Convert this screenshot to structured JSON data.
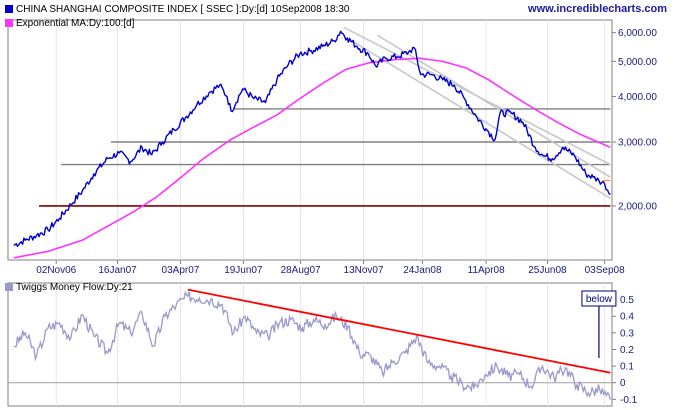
{
  "website": "www.incrediblecharts.com",
  "chart_data": [
    {
      "type": "line",
      "title": "CHINA SHANGHAI COMPOSITE INDEX [ SSEC ]:Dy:[d]  10Sep2008 18:30",
      "scale": "log",
      "ylim": [
        1420,
        6500
      ],
      "y_ticks": [
        {
          "value": 2000,
          "label": "2,000.00"
        },
        {
          "value": 3000,
          "label": "3,000.00"
        },
        {
          "value": 4000,
          "label": "4,000.00"
        },
        {
          "value": 5000,
          "label": "5,000.00"
        },
        {
          "value": 6000,
          "label": "6,000.00"
        }
      ],
      "x_ticks": [
        "02Nov06",
        "16Jan07",
        "03Apr07",
        "19Jun07",
        "28Aug07",
        "13Nov07",
        "24Jan08",
        "11Apr08",
        "25Jun08",
        "03Sep08"
      ],
      "series": [
        {
          "name": "CHINA SHANGHAI COMPOSITE INDEX [ SSEC ]:Dy:[d]  10Sep2008 18:30",
          "color": "#0000cc",
          "points": [
            [
              "2006-09-11",
              1560
            ],
            [
              "2006-09-25",
              1610
            ],
            [
              "2006-10-09",
              1660
            ],
            [
              "2006-10-23",
              1720
            ],
            [
              "2006-11-06",
              1850
            ],
            [
              "2006-11-20",
              2020
            ],
            [
              "2006-12-04",
              2200
            ],
            [
              "2006-12-18",
              2450
            ],
            [
              "2007-01-04",
              2700
            ],
            [
              "2007-01-18",
              2800
            ],
            [
              "2007-02-01",
              2650
            ],
            [
              "2007-02-15",
              2900
            ],
            [
              "2007-02-27",
              2770
            ],
            [
              "2007-03-12",
              3000
            ],
            [
              "2007-03-26",
              3250
            ],
            [
              "2007-04-09",
              3500
            ],
            [
              "2007-04-23",
              3800
            ],
            [
              "2007-05-08",
              4100
            ],
            [
              "2007-05-21",
              4300
            ],
            [
              "2007-05-30",
              4000
            ],
            [
              "2007-06-04",
              3650
            ],
            [
              "2007-06-18",
              4200
            ],
            [
              "2007-07-02",
              3950
            ],
            [
              "2007-07-16",
              3850
            ],
            [
              "2007-07-30",
              4450
            ],
            [
              "2007-08-13",
              4900
            ],
            [
              "2007-08-27",
              5250
            ],
            [
              "2007-09-10",
              5350
            ],
            [
              "2007-09-24",
              5500
            ],
            [
              "2007-10-08",
              5700
            ],
            [
              "2007-10-16",
              6050
            ],
            [
              "2007-10-24",
              5800
            ],
            [
              "2007-11-05",
              5500
            ],
            [
              "2007-11-19",
              5250
            ],
            [
              "2007-11-28",
              4850
            ],
            [
              "2007-12-10",
              5100
            ],
            [
              "2007-12-24",
              5150
            ],
            [
              "2008-01-07",
              5300
            ],
            [
              "2008-01-14",
              5450
            ],
            [
              "2008-01-22",
              4600
            ],
            [
              "2008-02-04",
              4600
            ],
            [
              "2008-02-18",
              4450
            ],
            [
              "2008-03-03",
              4300
            ],
            [
              "2008-03-17",
              3900
            ],
            [
              "2008-03-31",
              3500
            ],
            [
              "2008-04-14",
              3200
            ],
            [
              "2008-04-22",
              3050
            ],
            [
              "2008-04-28",
              3600
            ],
            [
              "2008-05-12",
              3600
            ],
            [
              "2008-05-26",
              3400
            ],
            [
              "2008-06-10",
              2900
            ],
            [
              "2008-06-20",
              2750
            ],
            [
              "2008-07-01",
              2700
            ],
            [
              "2008-07-14",
              2900
            ],
            [
              "2008-07-28",
              2750
            ],
            [
              "2008-08-11",
              2450
            ],
            [
              "2008-08-20",
              2400
            ],
            [
              "2008-08-27",
              2350
            ],
            [
              "2008-09-03",
              2300
            ],
            [
              "2008-09-10",
              2150
            ]
          ]
        },
        {
          "name": "Exponential MA:Dy:100:[d]",
          "color": "#ff33ff",
          "points": [
            [
              "2006-09-11",
              1440
            ],
            [
              "2006-10-23",
              1500
            ],
            [
              "2006-12-04",
              1610
            ],
            [
              "2007-01-08",
              1780
            ],
            [
              "2007-02-05",
              1930
            ],
            [
              "2007-03-05",
              2120
            ],
            [
              "2007-04-02",
              2380
            ],
            [
              "2007-05-01",
              2700
            ],
            [
              "2007-06-04",
              3050
            ],
            [
              "2007-07-02",
              3300
            ],
            [
              "2007-07-30",
              3560
            ],
            [
              "2007-08-27",
              3950
            ],
            [
              "2007-09-24",
              4350
            ],
            [
              "2007-10-22",
              4750
            ],
            [
              "2007-11-19",
              4950
            ],
            [
              "2007-12-17",
              5050
            ],
            [
              "2008-01-21",
              5100
            ],
            [
              "2008-02-18",
              5000
            ],
            [
              "2008-03-17",
              4800
            ],
            [
              "2008-04-14",
              4450
            ],
            [
              "2008-05-12",
              4050
            ],
            [
              "2008-06-09",
              3700
            ],
            [
              "2008-07-07",
              3400
            ],
            [
              "2008-08-04",
              3150
            ],
            [
              "2008-09-10",
              2900
            ]
          ]
        }
      ],
      "support_lines": [
        {
          "from": "2007-06-08",
          "to": "2008-09-10",
          "value": 3700
        },
        {
          "from": "2007-01-08",
          "to": "2008-09-10",
          "value": 3000
        },
        {
          "from": "2006-11-08",
          "to": "2008-09-10",
          "value": 2600
        },
        {
          "from": "2006-10-12",
          "to": "2008-09-10",
          "value": 2000
        }
      ],
      "trend_channel": [
        {
          "from": [
            "2007-10-20",
            6200
          ],
          "to": [
            "2008-09-10",
            2600
          ]
        },
        {
          "from": [
            "2007-11-30",
            5900
          ],
          "to": [
            "2008-09-10",
            2400
          ]
        },
        {
          "from": [
            "2007-10-24",
            5800
          ],
          "to": [
            "2008-09-10",
            2100
          ]
        }
      ],
      "marker_line": {
        "from": "2008-09-01",
        "to": "2008-09-10",
        "value": 2350
      }
    },
    {
      "type": "line",
      "title": "Twiggs Money Flow:Dy:21",
      "ylim": [
        -0.14,
        0.6
      ],
      "y_ticks": [
        {
          "value": 0.5,
          "label": "0.5"
        },
        {
          "value": 0.4,
          "label": "0.4"
        },
        {
          "value": 0.3,
          "label": "0.3"
        },
        {
          "value": 0.2,
          "label": "0.2"
        },
        {
          "value": 0.1,
          "label": "0.1"
        },
        {
          "value": 0,
          "label": "0"
        },
        {
          "value": -0.1,
          "label": "-0.1"
        }
      ],
      "series": [
        {
          "name": "Twiggs Money Flow:Dy:21",
          "color": "#9999cc",
          "points": [
            [
              "2006-09-11",
              0.22
            ],
            [
              "2006-09-25",
              0.3
            ],
            [
              "2006-10-09",
              0.16
            ],
            [
              "2006-10-23",
              0.33
            ],
            [
              "2006-11-06",
              0.36
            ],
            [
              "2006-11-20",
              0.27
            ],
            [
              "2006-12-04",
              0.41
            ],
            [
              "2006-12-18",
              0.28
            ],
            [
              "2007-01-04",
              0.18
            ],
            [
              "2007-01-18",
              0.36
            ],
            [
              "2007-02-01",
              0.3
            ],
            [
              "2007-02-15",
              0.42
            ],
            [
              "2007-03-01",
              0.22
            ],
            [
              "2007-03-15",
              0.4
            ],
            [
              "2007-03-29",
              0.47
            ],
            [
              "2007-04-12",
              0.52
            ],
            [
              "2007-04-26",
              0.51
            ],
            [
              "2007-05-10",
              0.5
            ],
            [
              "2007-05-24",
              0.47
            ],
            [
              "2007-06-07",
              0.3
            ],
            [
              "2007-06-21",
              0.4
            ],
            [
              "2007-07-05",
              0.3
            ],
            [
              "2007-07-19",
              0.28
            ],
            [
              "2007-08-02",
              0.36
            ],
            [
              "2007-08-16",
              0.38
            ],
            [
              "2007-08-30",
              0.33
            ],
            [
              "2007-09-13",
              0.38
            ],
            [
              "2007-09-27",
              0.35
            ],
            [
              "2007-10-11",
              0.4
            ],
            [
              "2007-10-25",
              0.34
            ],
            [
              "2007-11-08",
              0.18
            ],
            [
              "2007-11-22",
              0.16
            ],
            [
              "2007-12-06",
              0.06
            ],
            [
              "2007-12-20",
              0.13
            ],
            [
              "2008-01-03",
              0.18
            ],
            [
              "2008-01-17",
              0.28
            ],
            [
              "2008-01-31",
              0.12
            ],
            [
              "2008-02-14",
              0.1
            ],
            [
              "2008-02-28",
              0.04
            ],
            [
              "2008-03-13",
              -0.01
            ],
            [
              "2008-03-27",
              -0.03
            ],
            [
              "2008-04-10",
              0.05
            ],
            [
              "2008-04-24",
              0.1
            ],
            [
              "2008-05-08",
              0.04
            ],
            [
              "2008-05-22",
              0.05
            ],
            [
              "2008-06-05",
              -0.02
            ],
            [
              "2008-06-19",
              0.1
            ],
            [
              "2008-07-03",
              0.03
            ],
            [
              "2008-07-17",
              0.09
            ],
            [
              "2008-07-31",
              -0.01
            ],
            [
              "2008-08-14",
              -0.06
            ],
            [
              "2008-08-28",
              -0.04
            ],
            [
              "2008-09-10",
              -0.1
            ]
          ]
        }
      ],
      "trend_line": {
        "from": [
          "2007-04-12",
          0.56
        ],
        "to": [
          "2008-09-10",
          0.06
        ],
        "color": "#ff0000"
      },
      "zero_line": 0,
      "annotation": {
        "text": "below",
        "date": "2008-08-27"
      }
    }
  ]
}
